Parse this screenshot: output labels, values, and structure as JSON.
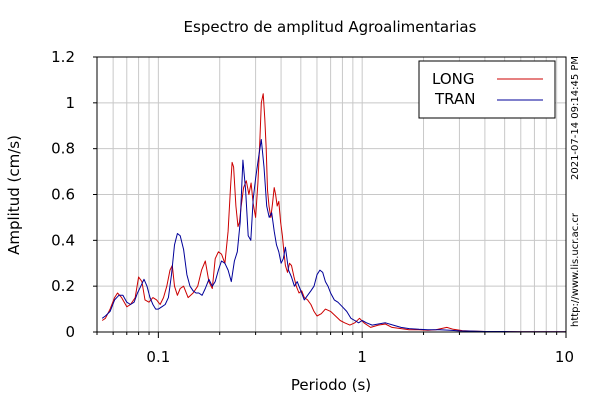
{
  "chart_data": {
    "type": "line",
    "title": "Espectro de amplitud Agroalimentarias",
    "xlabel": "Periodo (s)",
    "ylabel": "Amplitud (cm/s)",
    "x_scale": "log",
    "xlim": [
      0.05,
      10
    ],
    "ylim": [
      0,
      1.2
    ],
    "grid": true,
    "legend_position": "top-right",
    "x_ticks": [
      0.1,
      1,
      10
    ],
    "x_tick_labels": [
      "0.1",
      "1",
      "10"
    ],
    "y_ticks": [
      0,
      0.2,
      0.4,
      0.6,
      0.8,
      1.0,
      1.2
    ],
    "y_tick_labels": [
      "0",
      "0.2",
      "0.4",
      "0.6",
      "0.8",
      "1",
      "1.2"
    ],
    "side_annotations": [
      "2021-07-14 09:14:45 PM",
      "http://www.lis.ucr.ac.cr"
    ],
    "series": [
      {
        "name": "LONG",
        "color": "#cc0000",
        "x": [
          0.053,
          0.055,
          0.058,
          0.061,
          0.063,
          0.066,
          0.07,
          0.073,
          0.077,
          0.08,
          0.083,
          0.086,
          0.09,
          0.094,
          0.098,
          0.102,
          0.106,
          0.11,
          0.114,
          0.117,
          0.12,
          0.124,
          0.128,
          0.133,
          0.14,
          0.148,
          0.156,
          0.163,
          0.17,
          0.177,
          0.184,
          0.19,
          0.197,
          0.204,
          0.212,
          0.22,
          0.226,
          0.23,
          0.234,
          0.24,
          0.246,
          0.25,
          0.255,
          0.262,
          0.27,
          0.278,
          0.285,
          0.292,
          0.3,
          0.308,
          0.315,
          0.32,
          0.327,
          0.333,
          0.338,
          0.343,
          0.349,
          0.356,
          0.363,
          0.37,
          0.376,
          0.383,
          0.39,
          0.398,
          0.406,
          0.413,
          0.42,
          0.43,
          0.44,
          0.45,
          0.463,
          0.475,
          0.49,
          0.505,
          0.52,
          0.54,
          0.56,
          0.58,
          0.6,
          0.63,
          0.66,
          0.7,
          0.74,
          0.78,
          0.82,
          0.87,
          0.92,
          0.97,
          1.02,
          1.1,
          1.2,
          1.3,
          1.4,
          1.55,
          1.7,
          1.9,
          2.1,
          2.3,
          2.6,
          2.8,
          3.1,
          3.5,
          4.0,
          5.0,
          6.0,
          8.0,
          10.0
        ],
        "y": [
          0.05,
          0.06,
          0.1,
          0.15,
          0.17,
          0.15,
          0.11,
          0.12,
          0.15,
          0.24,
          0.22,
          0.14,
          0.13,
          0.15,
          0.14,
          0.12,
          0.15,
          0.2,
          0.27,
          0.29,
          0.2,
          0.16,
          0.19,
          0.2,
          0.15,
          0.17,
          0.2,
          0.27,
          0.31,
          0.22,
          0.19,
          0.32,
          0.35,
          0.34,
          0.3,
          0.44,
          0.63,
          0.74,
          0.72,
          0.55,
          0.46,
          0.48,
          0.55,
          0.63,
          0.66,
          0.6,
          0.65,
          0.56,
          0.5,
          0.65,
          0.84,
          1.0,
          1.04,
          0.93,
          0.8,
          0.62,
          0.55,
          0.5,
          0.56,
          0.63,
          0.6,
          0.55,
          0.57,
          0.48,
          0.42,
          0.35,
          0.29,
          0.26,
          0.3,
          0.29,
          0.24,
          0.2,
          0.17,
          0.18,
          0.15,
          0.14,
          0.12,
          0.09,
          0.07,
          0.08,
          0.1,
          0.09,
          0.07,
          0.05,
          0.04,
          0.03,
          0.04,
          0.06,
          0.04,
          0.02,
          0.03,
          0.035,
          0.02,
          0.015,
          0.01,
          0.01,
          0.008,
          0.01,
          0.02,
          0.012,
          0.006,
          0.004,
          0.002,
          0.002,
          0.001,
          0.001,
          0.001
        ]
      },
      {
        "name": "TRAN",
        "color": "#000099",
        "x": [
          0.053,
          0.055,
          0.058,
          0.061,
          0.064,
          0.067,
          0.07,
          0.073,
          0.076,
          0.079,
          0.082,
          0.085,
          0.088,
          0.091,
          0.094,
          0.097,
          0.1,
          0.104,
          0.108,
          0.112,
          0.116,
          0.12,
          0.124,
          0.128,
          0.133,
          0.138,
          0.143,
          0.148,
          0.153,
          0.158,
          0.164,
          0.17,
          0.177,
          0.184,
          0.19,
          0.197,
          0.204,
          0.212,
          0.22,
          0.228,
          0.236,
          0.244,
          0.252,
          0.26,
          0.268,
          0.276,
          0.284,
          0.292,
          0.3,
          0.31,
          0.32,
          0.33,
          0.34,
          0.35,
          0.36,
          0.37,
          0.38,
          0.39,
          0.4,
          0.41,
          0.42,
          0.435,
          0.45,
          0.465,
          0.48,
          0.5,
          0.52,
          0.54,
          0.56,
          0.58,
          0.6,
          0.62,
          0.64,
          0.66,
          0.68,
          0.7,
          0.73,
          0.76,
          0.8,
          0.84,
          0.88,
          0.92,
          0.96,
          1.0,
          1.05,
          1.12,
          1.2,
          1.3,
          1.42,
          1.55,
          1.7,
          1.9,
          2.1,
          2.4,
          2.7,
          3.0,
          3.5,
          4.0,
          5.0,
          6.0,
          8.0,
          10.0
        ],
        "y": [
          0.06,
          0.07,
          0.09,
          0.14,
          0.16,
          0.16,
          0.13,
          0.12,
          0.13,
          0.17,
          0.2,
          0.23,
          0.2,
          0.15,
          0.12,
          0.1,
          0.1,
          0.11,
          0.12,
          0.15,
          0.25,
          0.38,
          0.43,
          0.42,
          0.36,
          0.25,
          0.2,
          0.18,
          0.17,
          0.17,
          0.16,
          0.19,
          0.23,
          0.2,
          0.22,
          0.27,
          0.31,
          0.3,
          0.27,
          0.22,
          0.31,
          0.35,
          0.48,
          0.75,
          0.62,
          0.42,
          0.4,
          0.58,
          0.67,
          0.76,
          0.84,
          0.72,
          0.55,
          0.5,
          0.52,
          0.44,
          0.38,
          0.35,
          0.3,
          0.32,
          0.37,
          0.27,
          0.24,
          0.2,
          0.22,
          0.18,
          0.14,
          0.16,
          0.18,
          0.2,
          0.25,
          0.27,
          0.26,
          0.22,
          0.2,
          0.17,
          0.14,
          0.13,
          0.11,
          0.09,
          0.06,
          0.05,
          0.04,
          0.05,
          0.04,
          0.03,
          0.035,
          0.04,
          0.03,
          0.02,
          0.015,
          0.012,
          0.01,
          0.01,
          0.008,
          0.005,
          0.004,
          0.002,
          0.002,
          0.001,
          0.001,
          0.001
        ]
      }
    ]
  }
}
